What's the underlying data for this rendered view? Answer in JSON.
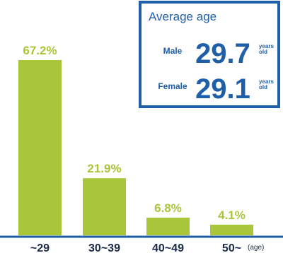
{
  "chart_data": {
    "type": "bar",
    "categories": [
      "~29",
      "30~39",
      "40~49",
      "50~"
    ],
    "values": [
      67.2,
      21.9,
      6.8,
      4.1
    ],
    "value_labels": [
      "67.2%",
      "21.9%",
      "6.8%",
      "4.1%"
    ],
    "color": "#a9c63b",
    "x_label": "(age)",
    "average_age": {
      "title": "Average age",
      "rows": [
        {
          "label": "Male",
          "value": 29.7,
          "unit": [
            "years",
            "old"
          ]
        },
        {
          "label": "Female",
          "value": 29.1,
          "unit": [
            "years",
            "old"
          ]
        }
      ]
    }
  }
}
